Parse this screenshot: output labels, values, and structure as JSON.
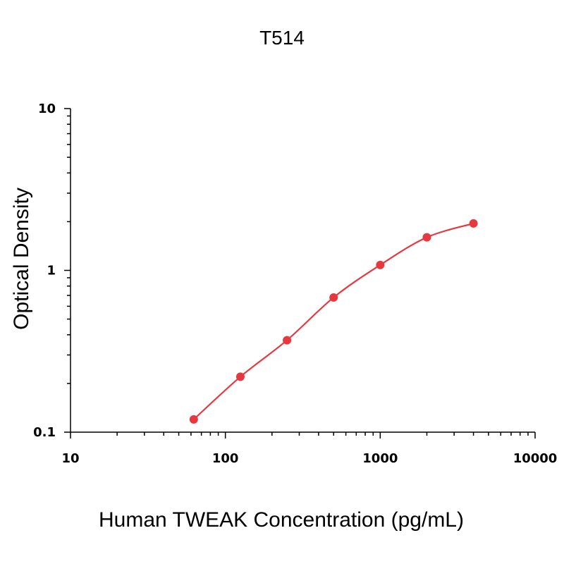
{
  "chart_data": {
    "type": "line",
    "title": "T514",
    "xlabel": "Human TWEAK Concentration (pg/mL)",
    "ylabel": "Optical Density",
    "xscale": "log",
    "yscale": "log",
    "xlim": [
      10,
      10000
    ],
    "ylim": [
      0.1,
      10
    ],
    "x_ticks": [
      "10",
      "100",
      "1000",
      "10000"
    ],
    "y_ticks": [
      "0.1",
      "1",
      "10"
    ],
    "grid": false,
    "series": [
      {
        "color": "#e8383f",
        "x": [
          62.5,
          125,
          250,
          500,
          1000,
          2000,
          4000
        ],
        "y": [
          0.12,
          0.22,
          0.37,
          0.68,
          1.08,
          1.6,
          1.95
        ]
      }
    ]
  }
}
